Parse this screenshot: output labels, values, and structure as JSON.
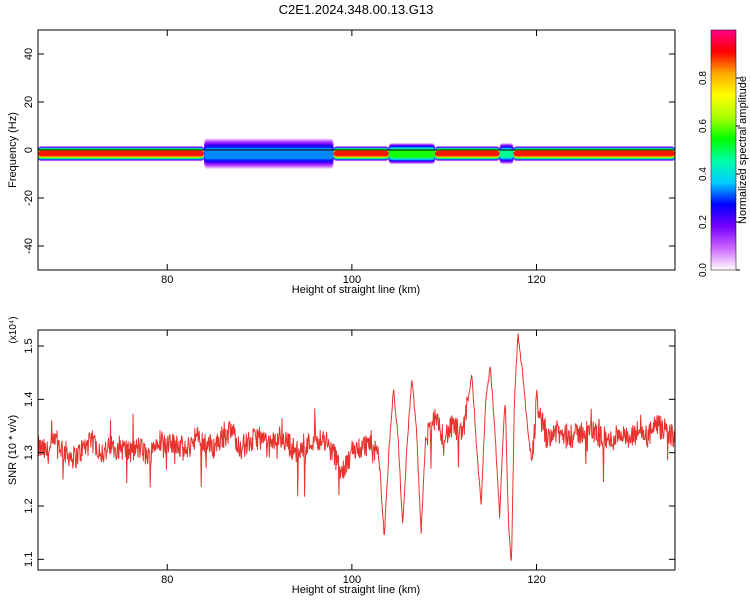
{
  "title": "C2E1.2024.348.00.13.G13",
  "chart_data": [
    {
      "type": "heatmap",
      "xlabel": "Height of straight line (km)",
      "ylabel": "Frequency (Hz)",
      "xlim": [
        66,
        135
      ],
      "ylim": [
        -50,
        50
      ],
      "xticks": [
        80,
        100,
        120
      ],
      "yticks": [
        -40,
        -20,
        0,
        20,
        40
      ],
      "colorbar": {
        "label": "Normalized spectral amplitude",
        "range": [
          0,
          1
        ],
        "ticks": [
          0.0,
          0.2,
          0.4,
          0.6,
          0.8
        ],
        "colors": [
          "#ffffff",
          "#cc66ff",
          "#7700ff",
          "#0000ff",
          "#00ccff",
          "#00ffaa",
          "#00ff00",
          "#aaff00",
          "#ffff00",
          "#ffaa00",
          "#ff0000",
          "#ff0088"
        ]
      },
      "band": {
        "center_frequency": -1.5,
        "segments": [
          {
            "x_start": 66,
            "x_end": 84,
            "peak_amplitude": 1.0,
            "halfwidth_hz": 2.5
          },
          {
            "x_start": 84,
            "x_end": 98,
            "peak_amplitude": 0.35,
            "halfwidth_hz": 5
          },
          {
            "x_start": 98,
            "x_end": 104,
            "peak_amplitude": 1.0,
            "halfwidth_hz": 2.5
          },
          {
            "x_start": 104,
            "x_end": 109,
            "peak_amplitude": 0.6,
            "halfwidth_hz": 3.5
          },
          {
            "x_start": 109,
            "x_end": 116,
            "peak_amplitude": 1.0,
            "halfwidth_hz": 2.5
          },
          {
            "x_start": 116,
            "x_end": 117.5,
            "peak_amplitude": 0.5,
            "halfwidth_hz": 3.5
          },
          {
            "x_start": 117.5,
            "x_end": 135,
            "peak_amplitude": 1.0,
            "halfwidth_hz": 2.5
          }
        ]
      }
    },
    {
      "type": "line",
      "xlabel": "Height of straight line (km)",
      "ylabel": "SNR (10 * v/v)",
      "y_multiplier": "(x10⁴)",
      "xlim": [
        66,
        135
      ],
      "ylim": [
        1.08,
        1.53
      ],
      "xticks": [
        80,
        100,
        120
      ],
      "yticks": [
        1.1,
        1.2,
        1.3,
        1.4,
        1.5
      ],
      "series": [
        {
          "color": "#e8322e",
          "x": [
            66,
            67,
            68,
            69,
            70,
            71,
            72,
            73,
            74,
            75,
            76,
            77,
            78,
            79,
            80,
            81,
            82,
            83,
            84,
            85,
            86,
            87,
            88,
            89,
            90,
            91,
            92,
            93,
            94,
            95,
            96,
            97,
            98,
            99,
            100,
            101,
            102,
            103,
            103.5,
            104,
            104.5,
            105,
            105.5,
            106,
            106.5,
            107,
            107.5,
            108,
            109,
            110,
            111,
            112,
            112.5,
            113,
            113.5,
            114,
            114.5,
            115,
            115.5,
            116,
            116.3,
            116.6,
            117,
            117.3,
            117.6,
            118,
            118.5,
            119,
            119.5,
            120,
            121,
            122,
            123,
            124,
            125,
            126,
            127,
            128,
            129,
            130,
            131,
            132,
            133,
            134,
            135
          ],
          "values": [
            1.31,
            1.3,
            1.32,
            1.3,
            1.29,
            1.31,
            1.32,
            1.3,
            1.31,
            1.31,
            1.3,
            1.31,
            1.29,
            1.33,
            1.31,
            1.32,
            1.3,
            1.33,
            1.32,
            1.31,
            1.33,
            1.34,
            1.31,
            1.32,
            1.33,
            1.31,
            1.33,
            1.32,
            1.3,
            1.31,
            1.33,
            1.32,
            1.3,
            1.26,
            1.3,
            1.31,
            1.32,
            1.28,
            1.14,
            1.3,
            1.42,
            1.33,
            1.16,
            1.32,
            1.44,
            1.34,
            1.15,
            1.33,
            1.36,
            1.33,
            1.35,
            1.33,
            1.39,
            1.45,
            1.31,
            1.2,
            1.4,
            1.46,
            1.34,
            1.18,
            1.3,
            1.4,
            1.15,
            1.09,
            1.4,
            1.52,
            1.45,
            1.35,
            1.28,
            1.4,
            1.33,
            1.34,
            1.33,
            1.33,
            1.34,
            1.34,
            1.33,
            1.32,
            1.34,
            1.32,
            1.34,
            1.33,
            1.35,
            1.34,
            1.33
          ]
        }
      ]
    }
  ]
}
